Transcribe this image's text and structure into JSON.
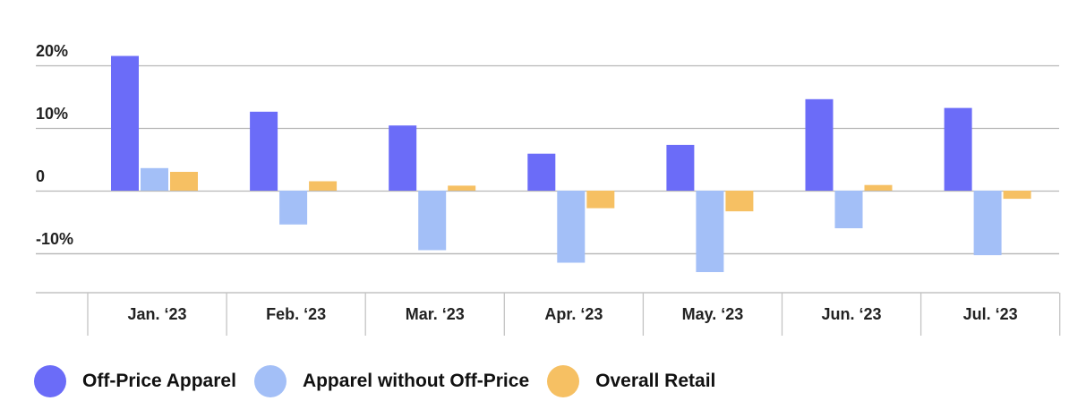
{
  "chart_data": {
    "type": "bar",
    "title": "",
    "xlabel": "",
    "ylabel": "",
    "categories": [
      "Jan. ‘23",
      "Feb. ‘23",
      "Mar. ‘23",
      "Apr. ‘23",
      "May. ‘23",
      "Jun. ‘23",
      "Jul. ‘23"
    ],
    "series": [
      {
        "name": "Off-Price Apparel",
        "color": "#6b6cf8",
        "values": [
          21.5,
          12.6,
          10.4,
          5.9,
          7.3,
          14.6,
          13.2
        ]
      },
      {
        "name": "Apparel without Off-Price",
        "color": "#a3bff7",
        "values": [
          3.6,
          -5.4,
          -9.5,
          -11.5,
          -13.0,
          -6.0,
          -10.3
        ]
      },
      {
        "name": "Overall Retail",
        "color": "#f6c063",
        "values": [
          3.0,
          1.5,
          0.8,
          -2.8,
          -3.3,
          0.9,
          -1.3
        ]
      }
    ],
    "yticks": [
      {
        "value": 20,
        "label": "20%"
      },
      {
        "value": 10,
        "label": "10%"
      },
      {
        "value": 0,
        "label": "0"
      },
      {
        "value": -10,
        "label": "-10%"
      }
    ],
    "ylim": [
      -16.5,
      22.5
    ],
    "grid": true,
    "legend_position": "bottom"
  }
}
